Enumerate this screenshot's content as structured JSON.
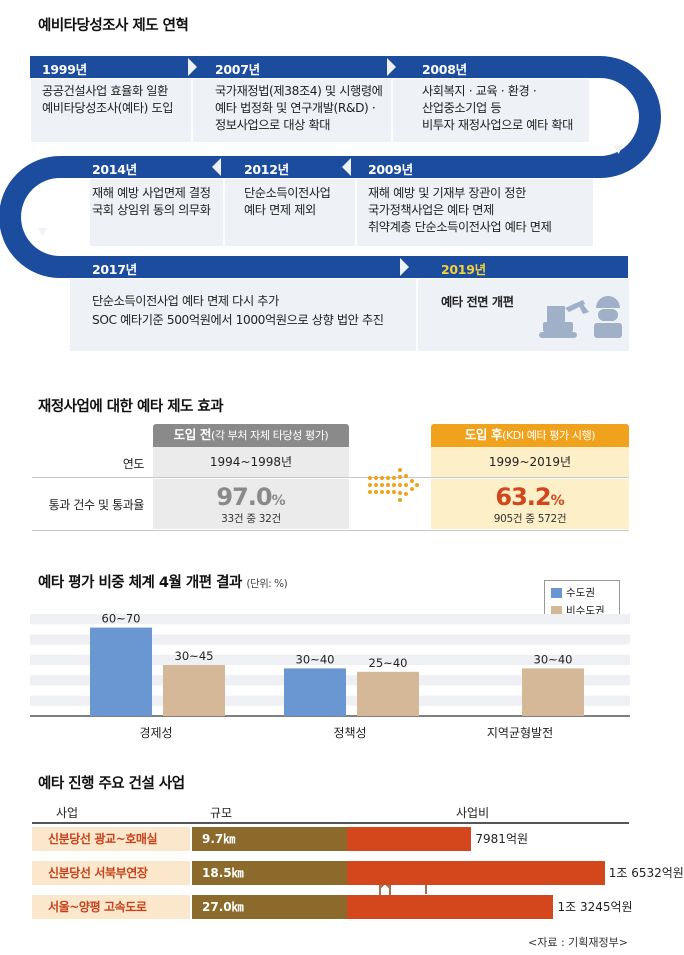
{
  "timeline": {
    "title": "예비타당성조사 제도 연혁",
    "events": [
      {
        "year": "1999년",
        "lines": [
          "공공건설사업 효율화 일환",
          "예비타당성조사(예타) 도입"
        ]
      },
      {
        "year": "2007년",
        "lines": [
          "국가재정법(제38조4) 및 시행령에",
          "예타 법정화 및 연구개발(R&D) ·",
          "정보사업으로 대상 확대"
        ]
      },
      {
        "year": "2008년",
        "lines": [
          "사회복지 · 교육 · 환경 ·",
          "산업중소기업 등",
          "비투자 재정사업으로 예타 확대"
        ]
      },
      {
        "year": "2009년",
        "lines": [
          "재해 예방 및 기재부 장관이 정한",
          "국가정책사업은 예타 면제",
          "취약계층 단순소득이전사업 예타 면제"
        ]
      },
      {
        "year": "2012년",
        "lines": [
          "단순소득이전사업",
          "예타 면제 제외"
        ]
      },
      {
        "year": "2014년",
        "lines": [
          "재해 예방 사업면제 결정",
          "국회 상임위 동의 의무화"
        ]
      },
      {
        "year": "2017년",
        "lines": [
          "단순소득이전사업 예타 면제 다시 추가",
          "SOC 예타기준 500억원에서 1000억원으로 상향 법안 추진"
        ]
      },
      {
        "year": "2019년",
        "lines": [
          "예타 전면 개편"
        ]
      }
    ],
    "colors": {
      "band": "#1c4c9e",
      "panel": "#eef1f6",
      "highlight": "#f3d23a"
    }
  },
  "comparison": {
    "title": "재정사업에 대한 예타 제도 효과",
    "row_labels": [
      "연도",
      "통과 건수 및 통과율"
    ],
    "before": {
      "label": "도입 전",
      "sub": "(각 부처 자체 타당성 평가)",
      "period": "1994~1998년",
      "rate": "97.0",
      "unit": "%",
      "count": "33건 중 32건",
      "color": "#8a8a8a"
    },
    "after": {
      "label": "도입 후",
      "sub": "(KDI 예타 평가 시행)",
      "period": "1999~2019년",
      "rate": "63.2",
      "unit": "%",
      "count": "905건 중 572건",
      "color": "#f0a21c",
      "text_color": "#d2461c"
    }
  },
  "chart_data": [
    {
      "type": "bar",
      "title": "예타 평가 비중 체계 4월 개편 결과",
      "unit_note": "(단위: %)",
      "categories": [
        "경제성",
        "정책성",
        "지역균형발전"
      ],
      "series": [
        {
          "name": "수도권",
          "values": [
            65,
            35,
            null
          ],
          "labels": [
            "60~70",
            "30~40",
            ""
          ],
          "color": "#6a96d2"
        },
        {
          "name": "비수도권",
          "values": [
            37.5,
            32.5,
            35
          ],
          "labels": [
            "30~45",
            "25~40",
            "30~40"
          ],
          "color": "#d4b898"
        }
      ],
      "ylim": [
        0,
        75
      ],
      "grid": true,
      "legend": "top-right"
    },
    {
      "type": "bar",
      "title": "예타 진행 주요 건설 사업",
      "headers": [
        "사업",
        "규모",
        "사업비"
      ],
      "categories": [
        "신분당선 광교~호매실",
        "신분당선 서북부연장",
        "서울~양평 고속도로"
      ],
      "sizes": [
        "9.7㎞",
        "18.5㎞",
        "27.0㎞"
      ],
      "values": [
        7981,
        16532,
        13245
      ],
      "value_labels": [
        "7981억원",
        "1조 6532억원",
        "1조 3245억원"
      ],
      "xlim": [
        0,
        17000
      ],
      "colors": {
        "bar": "#d4461c",
        "name_bg": "#fbe8cc",
        "size_bg": "#8b6a2c"
      }
    }
  ],
  "source": "<자료 : 기획재정부>"
}
